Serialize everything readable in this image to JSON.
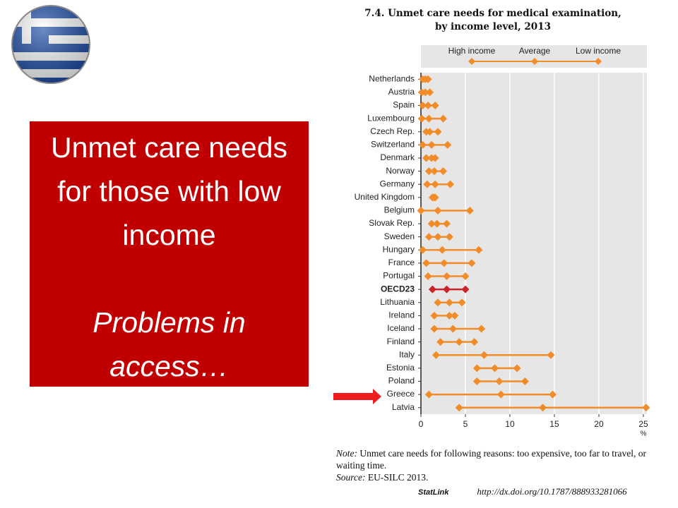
{
  "chart_data": {
    "type": "dot_range",
    "title": "7.4. Unmet care needs for medical examination, by income level, 2013",
    "categories": [
      "Netherlands",
      "Austria",
      "Spain",
      "Luxembourg",
      "Czech Rep.",
      "Switzerland",
      "Denmark",
      "Norway",
      "Germany",
      "United Kingdom",
      "Belgium",
      "Slovak Rep.",
      "Sweden",
      "Hungary",
      "France",
      "Portugal",
      "OECD23",
      "Lithuania",
      "Ireland",
      "Iceland",
      "Finland",
      "Italy",
      "Estonia",
      "Poland",
      "Greece",
      "Latvia"
    ],
    "series": [
      {
        "name": "High income",
        "color": "#f28c28",
        "values": [
          0.2,
          0.1,
          0.2,
          0.1,
          0.6,
          0.2,
          0.6,
          0.9,
          0.7,
          1.3,
          0.0,
          1.2,
          0.9,
          0.2,
          0.6,
          0.8,
          1.3,
          1.9,
          1.5,
          1.5,
          2.2,
          1.7,
          6.3,
          6.3,
          0.9,
          4.3
        ]
      },
      {
        "name": "Average",
        "color": "#f28c28",
        "values": [
          0.5,
          0.5,
          0.8,
          0.9,
          1.0,
          1.2,
          1.2,
          1.5,
          1.6,
          1.5,
          1.9,
          1.8,
          1.9,
          2.4,
          2.6,
          2.9,
          2.9,
          3.2,
          3.2,
          3.6,
          4.3,
          7.1,
          8.3,
          8.8,
          9.0,
          13.7
        ]
      },
      {
        "name": "Low income",
        "color": "#f28c28",
        "values": [
          0.8,
          1.0,
          1.6,
          2.5,
          1.9,
          3.0,
          1.6,
          2.5,
          3.3,
          1.6,
          5.5,
          2.9,
          3.2,
          6.5,
          5.7,
          5.0,
          5.0,
          4.6,
          3.8,
          6.8,
          6.0,
          14.6,
          10.8,
          11.7,
          14.8,
          25.3
        ]
      }
    ],
    "highlight_category": "OECD23",
    "highlight_color": "#cc2229",
    "xlim": [
      0,
      25.4
    ],
    "xticks": [
      0,
      5,
      10,
      15,
      20,
      25
    ],
    "x_label": "%",
    "grid": true
  },
  "slide": {
    "heading": "Unmet care needs for those with low income",
    "subheading": "Problems in access…"
  },
  "footer": {
    "note_label": "Note:",
    "note": "Unmet care needs for following reasons: too expensive, too far to travel, or waiting time.",
    "source_label": "Source:",
    "source": "EU-SILC 2013.",
    "statlink_label": "StatLink",
    "statlink_url": "http://dx.doi.org/10.1787/888933281066"
  }
}
